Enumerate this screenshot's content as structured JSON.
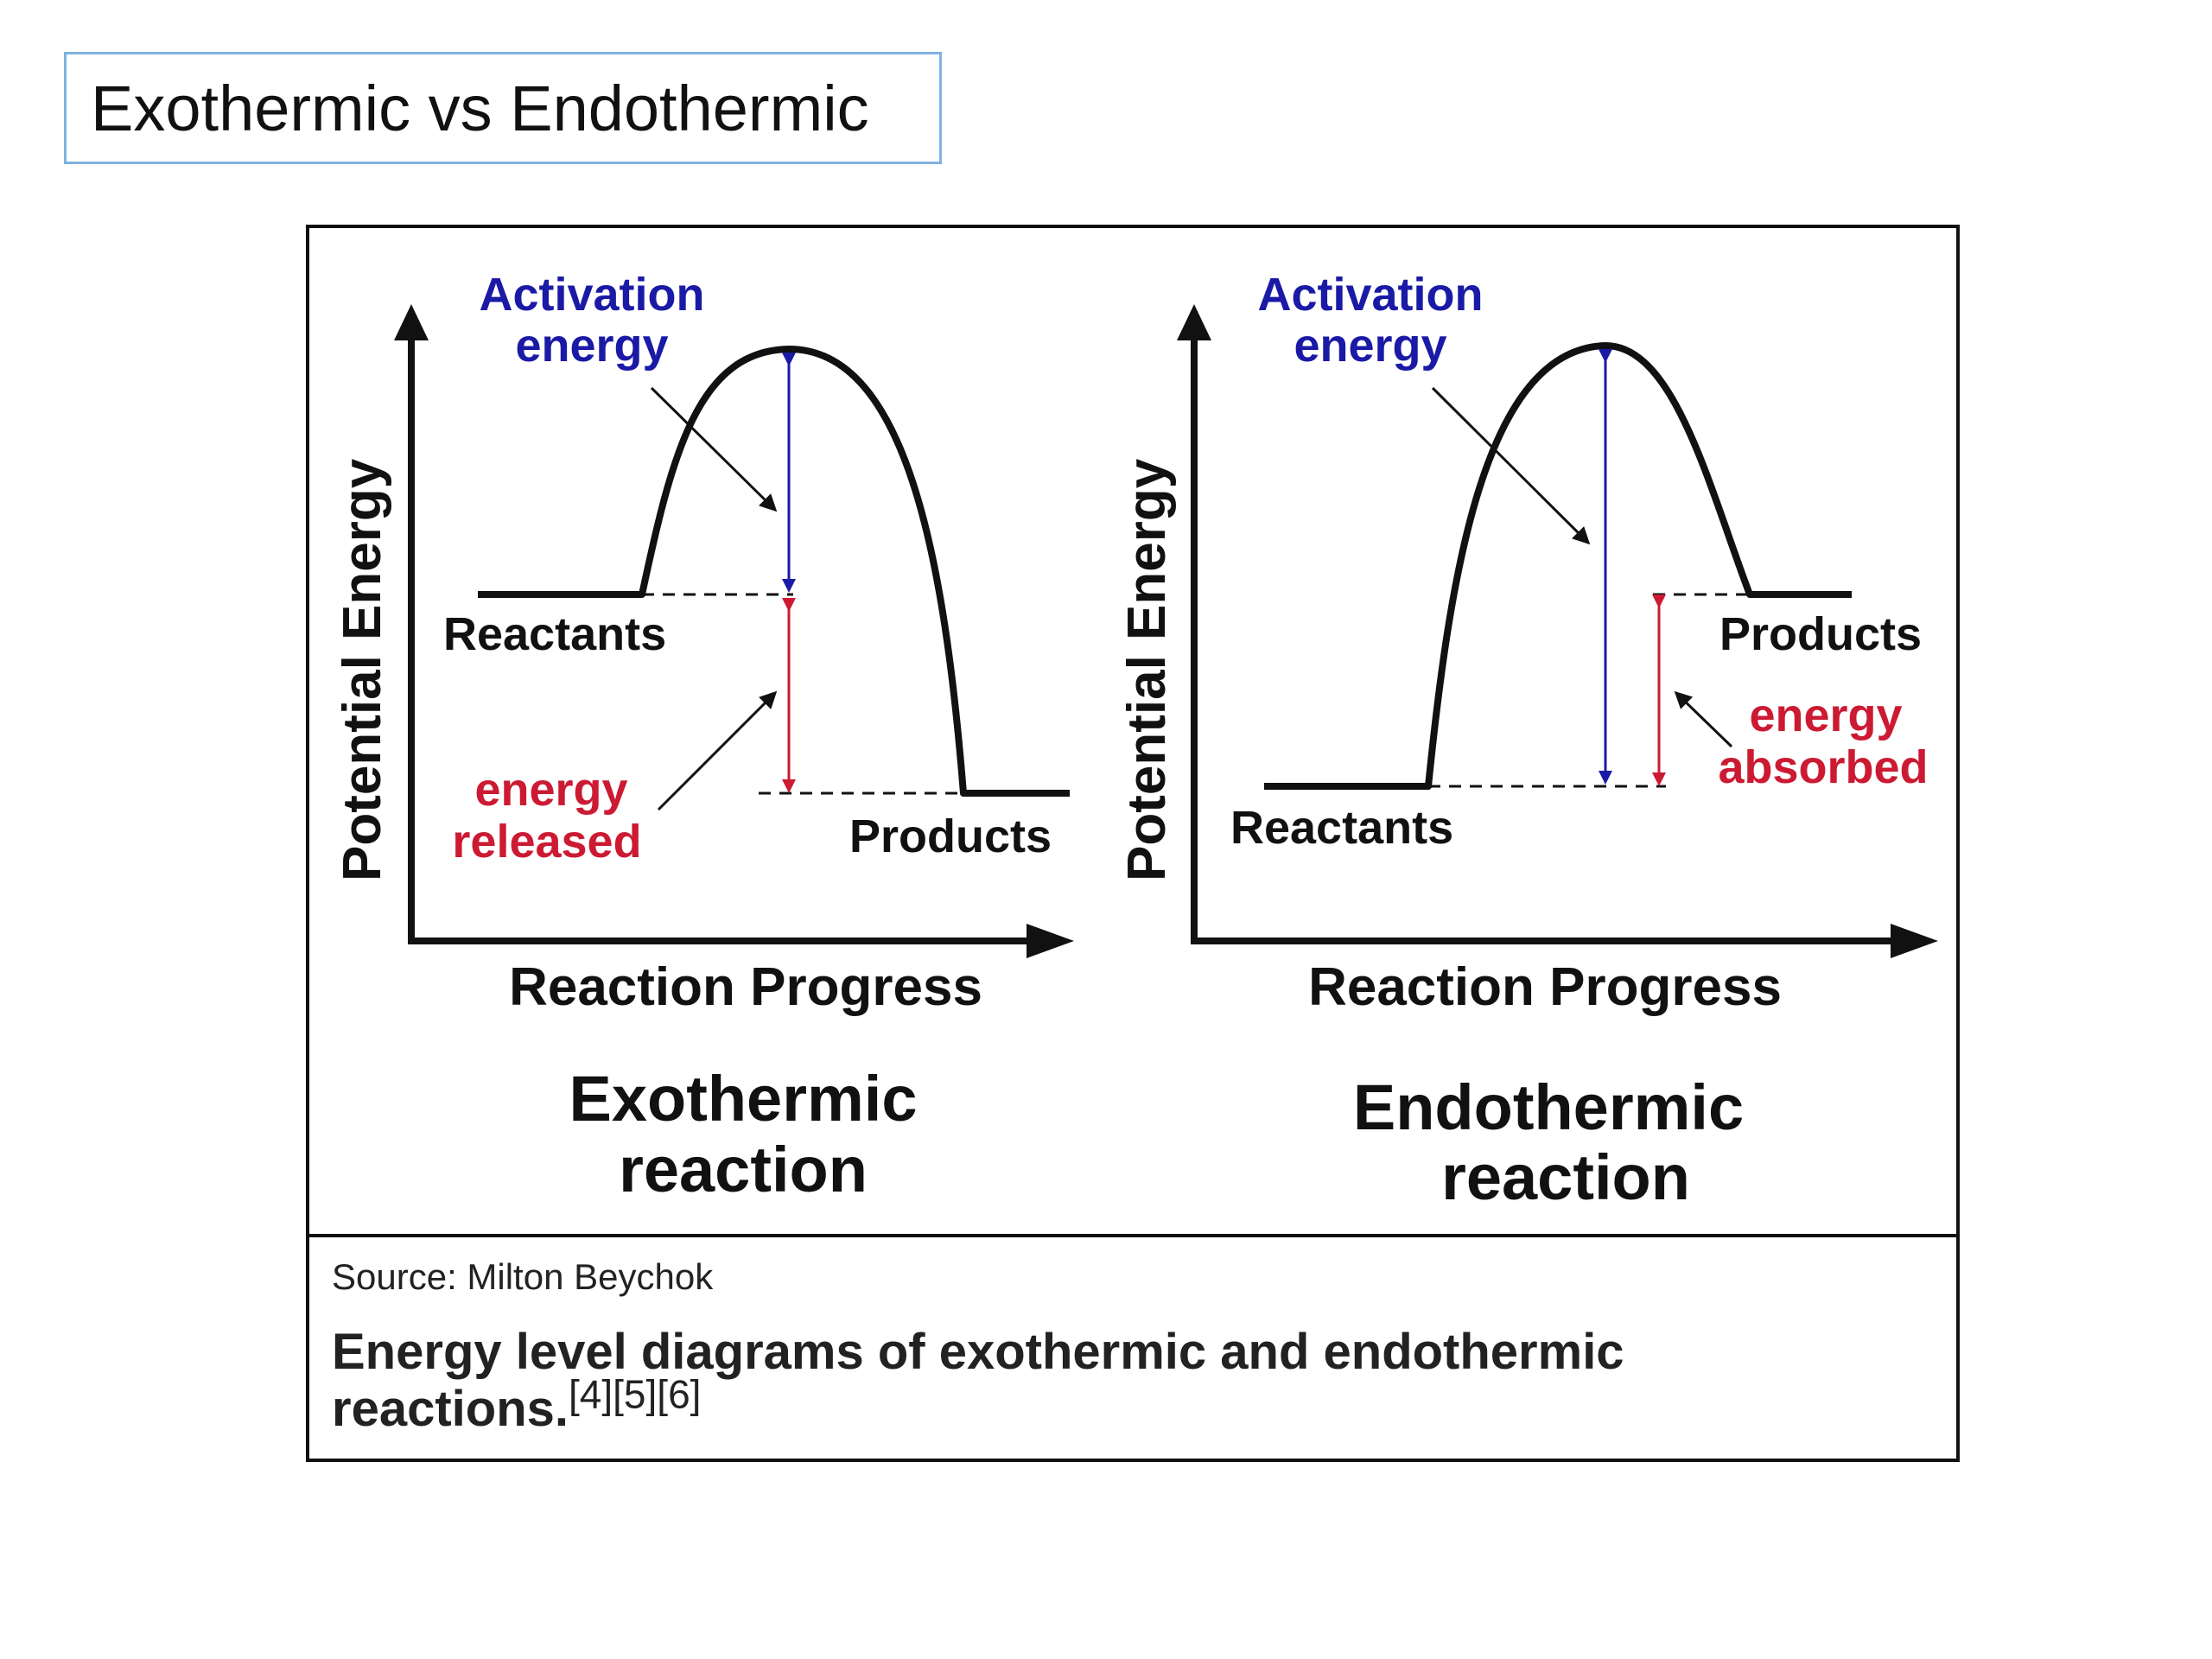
{
  "slide": {
    "title": "Exothermic vs Endothermic"
  },
  "figure": {
    "exothermic": {
      "y_axis_label": "Potential Energy",
      "x_axis_label": "Reaction Progress",
      "activation_line1": "Activation",
      "activation_line2": "energy",
      "reactants_label": "Reactants",
      "products_label": "Products",
      "energy_change_line1": "energy",
      "energy_change_line2": "released",
      "title_line1": "Exothermic",
      "title_line2": "reaction"
    },
    "endothermic": {
      "y_axis_label": "Potential Energy",
      "x_axis_label": "Reaction Progress",
      "activation_line1": "Activation",
      "activation_line2": "energy",
      "reactants_label": "Reactants",
      "products_label": "Products",
      "energy_change_line1": "energy",
      "energy_change_line2": "absorbed",
      "title_line1": "Endothermic",
      "title_line2": "reaction"
    },
    "caption": {
      "source": "Source: Milton Beychok",
      "text": "Energy level diagrams of exothermic and endothermic reactions.",
      "refs": "[4][5][6]"
    },
    "colors": {
      "activation": "#1a1aa6",
      "energy_change": "#cc1a33",
      "curve": "#111111"
    }
  }
}
